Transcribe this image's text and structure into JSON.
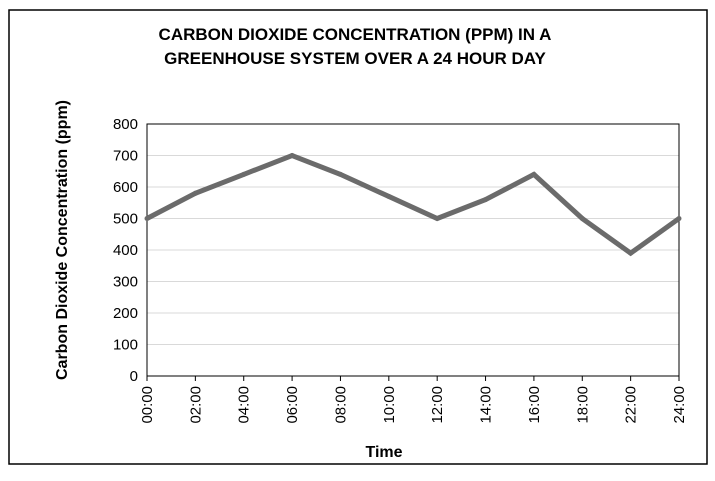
{
  "chart_data": {
    "type": "line",
    "title_line1": "CARBON DIOXIDE CONCENTRATION (PPM) IN A",
    "title_line2": "GREENHOUSE SYSTEM OVER A 24 HOUR DAY",
    "xlabel": "Time",
    "ylabel": "Carbon Dioxide Concentration (ppm)",
    "ylim": [
      0,
      800
    ],
    "yticks": [
      0,
      100,
      200,
      300,
      400,
      500,
      600,
      700,
      800
    ],
    "grid": true,
    "legend": "none",
    "line_color": "#6b6b6b",
    "x": [
      "00:00",
      "02:00",
      "04:00",
      "06:00",
      "08:00",
      "10:00",
      "12:00",
      "14:00",
      "16:00",
      "18:00",
      "22:00",
      "24:00"
    ],
    "series": [
      {
        "values": [
          500,
          580,
          640,
          700,
          640,
          570,
          500,
          560,
          640,
          500,
          390,
          500
        ]
      }
    ]
  }
}
